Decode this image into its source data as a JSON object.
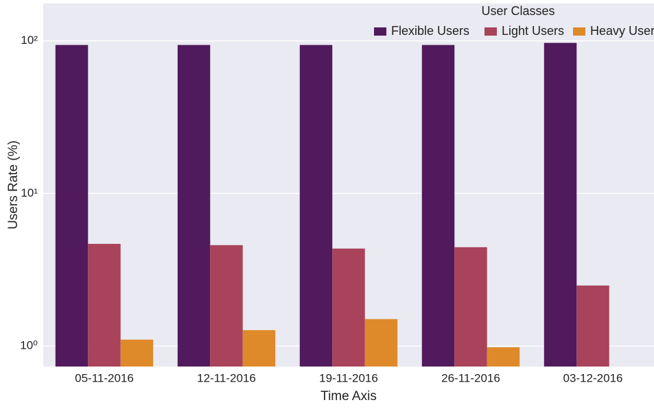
{
  "chart_data": {
    "type": "bar",
    "y_label": "Users Rate (%)",
    "x_label": "Time Axis",
    "legend_title": "User Classes",
    "legend": "upper right",
    "categories": [
      "05-11-2016",
      "12-11-2016",
      "19-11-2016",
      "26-11-2016",
      "03-12-2016"
    ],
    "series": [
      {
        "name": "Flexible Users",
        "color": "#511a5d",
        "values": [
          94,
          94,
          94,
          94,
          97
        ]
      },
      {
        "name": "Light Users",
        "color": "#a8435b",
        "values": [
          4.67,
          4.58,
          4.35,
          4.44,
          2.49
        ]
      },
      {
        "name": "Heavy Users",
        "color": "#de8a2a",
        "values": [
          1.1,
          1.27,
          1.5,
          0.98,
          null
        ]
      }
    ],
    "log_y": true,
    "grid": true,
    "ylim": [
      0.733,
      176
    ],
    "yticks": [
      {
        "value": 1,
        "label": "10⁰"
      },
      {
        "value": 10,
        "label": "10¹"
      },
      {
        "value": 100,
        "label": "10²"
      }
    ]
  }
}
